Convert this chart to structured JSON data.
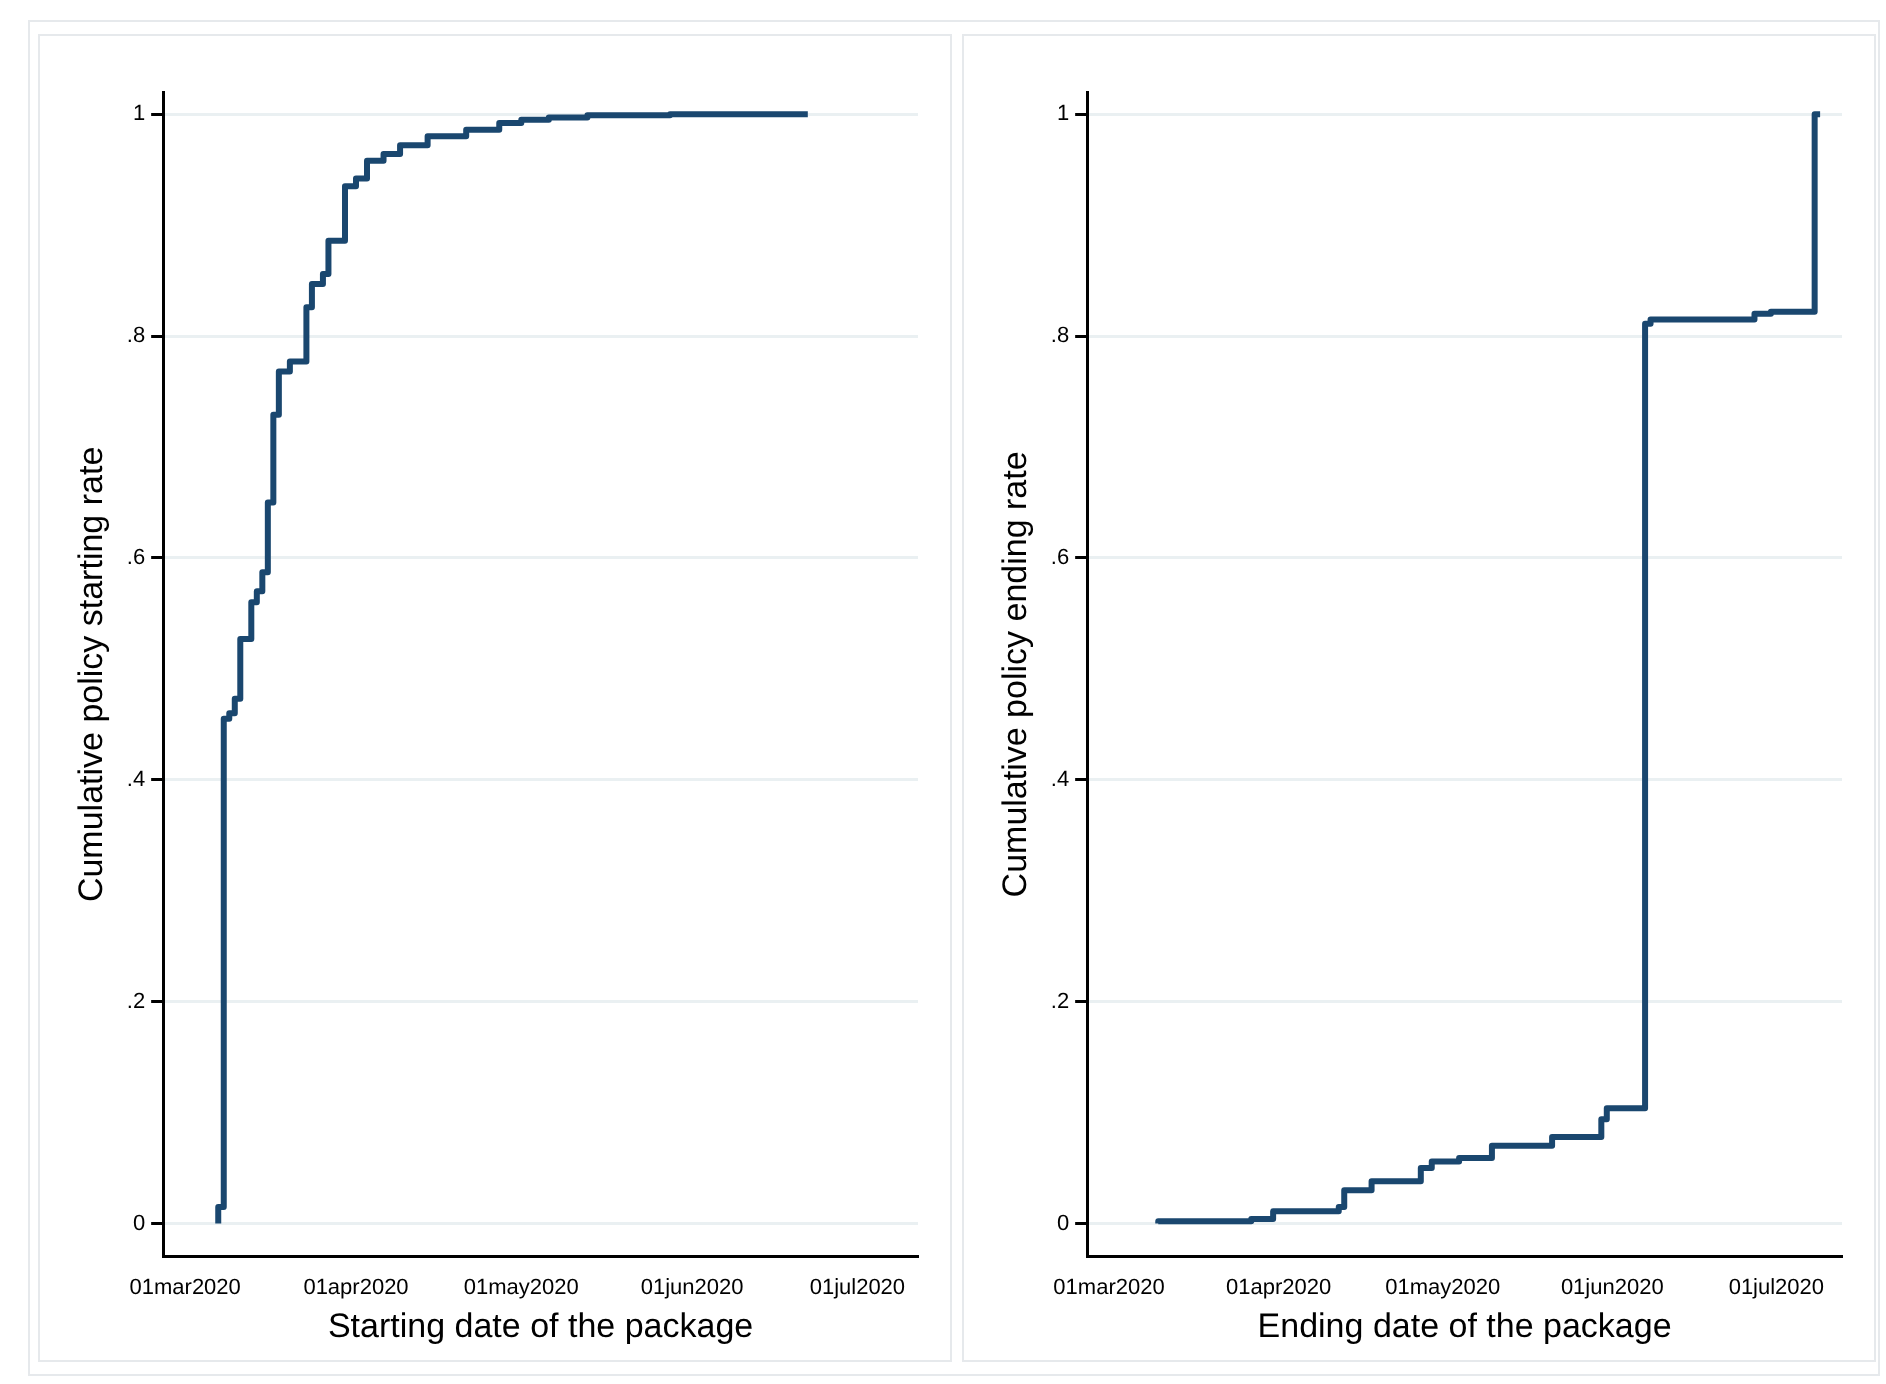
{
  "chart_data": [
    {
      "type": "step",
      "xlabel": "Starting date of the package",
      "ylabel": "Cumulative policy starting rate",
      "color": "#1a476f",
      "grid": "y",
      "legend": false,
      "x": [
        "2020-03-07",
        "2020-03-08",
        "2020-03-09",
        "2020-03-10",
        "2020-03-11",
        "2020-03-13",
        "2020-03-14",
        "2020-03-15",
        "2020-03-16",
        "2020-03-17",
        "2020-03-18",
        "2020-03-20",
        "2020-03-23",
        "2020-03-24",
        "2020-03-26",
        "2020-03-27",
        "2020-03-30",
        "2020-04-01",
        "2020-04-03",
        "2020-04-06",
        "2020-04-09",
        "2020-04-14",
        "2020-04-21",
        "2020-04-27",
        "2020-05-01",
        "2020-05-06",
        "2020-05-13",
        "2020-05-28",
        "2020-06-06",
        "2020-06-22"
      ],
      "values": [
        0,
        0.015,
        0.455,
        0.46,
        0.473,
        0.527,
        0.56,
        0.57,
        0.587,
        0.65,
        0.729,
        0.768,
        0.777,
        0.826,
        0.847,
        0.856,
        0.886,
        0.935,
        0.942,
        0.958,
        0.964,
        0.972,
        0.98,
        0.986,
        0.992,
        0.995,
        0.997,
        0.999,
        1,
        1
      ],
      "xlim": [
        "2020-02-26",
        "2020-07-12"
      ],
      "xticks": [
        {
          "value": "2020-03-01",
          "label": "01mar2020"
        },
        {
          "value": "2020-04-01",
          "label": "01apr2020"
        },
        {
          "value": "2020-05-01",
          "label": "01may2020"
        },
        {
          "value": "2020-06-01",
          "label": "01jun2020"
        },
        {
          "value": "2020-07-01",
          "label": "01jul2020"
        }
      ],
      "ylim": [
        -0.03,
        1.02
      ],
      "yticks": [
        {
          "value": 0,
          "label": "0"
        },
        {
          "value": 0.2,
          "label": ".2"
        },
        {
          "value": 0.4,
          "label": ".4"
        },
        {
          "value": 0.6,
          "label": ".6"
        },
        {
          "value": 0.8,
          "label": ".8"
        },
        {
          "value": 1,
          "label": "1"
        }
      ]
    },
    {
      "type": "step",
      "xlabel": "Ending date of the package",
      "ylabel": "Cumulative policy ending rate",
      "color": "#1a476f",
      "grid": "y",
      "legend": false,
      "x": [
        "2020-03-10",
        "2020-03-27",
        "2020-03-31",
        "2020-04-12",
        "2020-04-13",
        "2020-04-18",
        "2020-04-27",
        "2020-04-29",
        "2020-05-04",
        "2020-05-10",
        "2020-05-21",
        "2020-05-30",
        "2020-05-31",
        "2020-06-07",
        "2020-06-08",
        "2020-06-27",
        "2020-06-30",
        "2020-07-08",
        "2020-07-09"
      ],
      "values": [
        0,
        0.002,
        0.004,
        0.011,
        0.015,
        0.03,
        0.038,
        0.05,
        0.056,
        0.059,
        0.07,
        0.078,
        0.094,
        0.104,
        0.811,
        0.815,
        0.82,
        0.822,
        1
      ],
      "xlim": [
        "2020-02-26",
        "2020-07-13"
      ],
      "xticks": [
        {
          "value": "2020-03-01",
          "label": "01mar2020"
        },
        {
          "value": "2020-04-01",
          "label": "01apr2020"
        },
        {
          "value": "2020-05-01",
          "label": "01may2020"
        },
        {
          "value": "2020-06-01",
          "label": "01jun2020"
        },
        {
          "value": "2020-07-01",
          "label": "01jul2020"
        }
      ],
      "ylim": [
        -0.03,
        1.02
      ],
      "yticks": [
        {
          "value": 0,
          "label": "0"
        },
        {
          "value": 0.2,
          "label": ".2"
        },
        {
          "value": 0.4,
          "label": ".4"
        },
        {
          "value": 0.6,
          "label": ".6"
        },
        {
          "value": 0.8,
          "label": ".8"
        },
        {
          "value": 1,
          "label": "1"
        }
      ]
    }
  ]
}
